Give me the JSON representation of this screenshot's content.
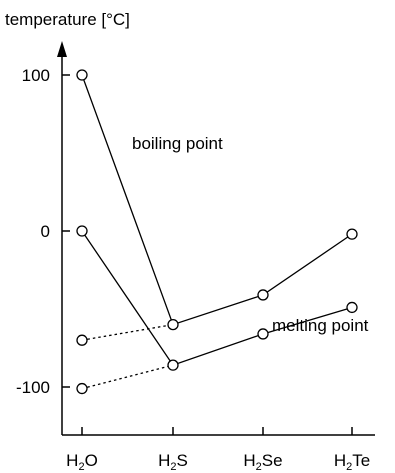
{
  "chart_data": {
    "type": "line",
    "ylabel": "temperature [°C]",
    "xlabel": "",
    "ylim": [
      -100,
      100
    ],
    "yticks": [
      "100",
      "0",
      "-100"
    ],
    "categories": [
      {
        "base": "H",
        "sub": "2",
        "rest": "O"
      },
      {
        "base": "H",
        "sub": "2",
        "rest": "S"
      },
      {
        "base": "H",
        "sub": "2",
        "rest": "Se"
      },
      {
        "base": "H",
        "sub": "2",
        "rest": "Te"
      }
    ],
    "series": [
      {
        "name": "boiling point",
        "values": [
          100,
          -60,
          -41,
          -2
        ],
        "extrapolated_first_value": -70
      },
      {
        "name": "melting point",
        "values": [
          0,
          -86,
          -66,
          -49
        ],
        "extrapolated_first_value": -101
      }
    ],
    "grid": false
  }
}
